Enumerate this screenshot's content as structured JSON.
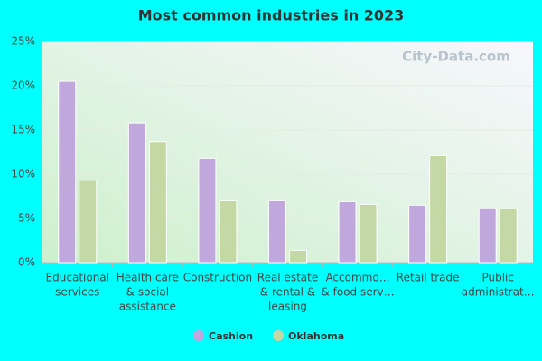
{
  "chart_data": {
    "type": "bar",
    "title": "Most common industries in 2023",
    "watermark": "City-Data.com",
    "categories": [
      [
        "Educational",
        "services"
      ],
      [
        "Health care",
        "& social",
        "assistance"
      ],
      [
        "Construction"
      ],
      [
        "Real estate",
        "& rental &",
        "leasing"
      ],
      [
        "Accommo…",
        "& food serv…"
      ],
      [
        "Retail trade"
      ],
      [
        "Public",
        "administrat…"
      ]
    ],
    "series": [
      {
        "name": "Cashion",
        "color": "#c0a8dc",
        "values": [
          20.5,
          15.8,
          11.8,
          7.0,
          6.9,
          6.5,
          6.1
        ]
      },
      {
        "name": "Oklahoma",
        "color": "#c3d8a5",
        "values": [
          9.3,
          13.7,
          7.0,
          1.4,
          6.6,
          12.1,
          6.1
        ]
      }
    ],
    "ylim": [
      0,
      25
    ],
    "yticks": [
      {
        "value": 0,
        "label": "0%"
      },
      {
        "value": 5,
        "label": "5%"
      },
      {
        "value": 10,
        "label": "10%"
      },
      {
        "value": 15,
        "label": "15%"
      },
      {
        "value": 20,
        "label": "20%"
      },
      {
        "value": 25,
        "label": "25%"
      }
    ],
    "grid": true
  }
}
